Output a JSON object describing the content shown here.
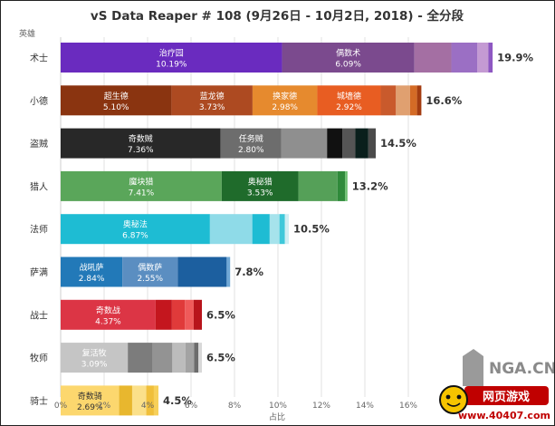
{
  "chart_data": {
    "type": "bar",
    "orientation": "horizontal",
    "stacked": true,
    "title": "vS Data Reaper # 108 (9月26日 - 10月2日, 2018) - 全分段",
    "ylabel": "英雄",
    "xlabel": "占比",
    "xlim": [
      0,
      18
    ],
    "xticks": [
      "0%",
      "2%",
      "4%",
      "6%",
      "8%",
      "10%",
      "12%",
      "14%",
      "16%"
    ],
    "grid": true,
    "categories": [
      "术士",
      "小德",
      "盗贼",
      "猎人",
      "法师",
      "萨满",
      "战士",
      "牧师",
      "骑士"
    ],
    "totals": [
      "19.9%",
      "16.6%",
      "14.5%",
      "13.2%",
      "10.5%",
      "7.8%",
      "6.5%",
      "6.5%",
      "4.5%"
    ],
    "bars": [
      {
        "class": "术士",
        "segments": [
          {
            "name": "治疗园",
            "pct": "10.19%",
            "value": 10.19,
            "color": "#6a2bbf"
          },
          {
            "name": "偶数术",
            "pct": "6.09%",
            "value": 6.09,
            "color": "#7b4a8e"
          },
          {
            "value": 1.7,
            "color": "#a46fa3"
          },
          {
            "value": 1.2,
            "color": "#9b6fc4"
          },
          {
            "value": 0.5,
            "color": "#c49ad3"
          },
          {
            "value": 0.2,
            "color": "#8e58c2"
          }
        ]
      },
      {
        "class": "小德",
        "segments": [
          {
            "name": "超生德",
            "pct": "5.10%",
            "value": 5.1,
            "color": "#8a3410"
          },
          {
            "name": "蓝龙德",
            "pct": "3.73%",
            "value": 3.73,
            "color": "#ad4a21"
          },
          {
            "name": "换家德",
            "pct": "2.98%",
            "value": 2.98,
            "color": "#e68a2e"
          },
          {
            "name": "城墙德",
            "pct": "2.92%",
            "value": 2.92,
            "color": "#e85d22"
          },
          {
            "value": 0.7,
            "color": "#c95a2c"
          },
          {
            "value": 0.65,
            "color": "#e0a070"
          },
          {
            "value": 0.32,
            "color": "#d46b26"
          },
          {
            "value": 0.2,
            "color": "#a33c10"
          }
        ]
      },
      {
        "class": "盗贼",
        "segments": [
          {
            "name": "奇数贼",
            "pct": "7.36%",
            "value": 7.36,
            "color": "#282828"
          },
          {
            "name": "任务贼",
            "pct": "2.80%",
            "value": 2.8,
            "color": "#6d6d6d"
          },
          {
            "value": 2.1,
            "color": "#8f8f8f"
          },
          {
            "value": 0.7,
            "color": "#111111"
          },
          {
            "value": 0.6,
            "color": "#555555"
          },
          {
            "value": 0.6,
            "color": "#0a1f1c"
          },
          {
            "value": 0.34,
            "color": "#4b4b4b"
          }
        ]
      },
      {
        "class": "猎人",
        "segments": [
          {
            "name": "魔块猎",
            "pct": "7.41%",
            "value": 7.41,
            "color": "#5aa65a"
          },
          {
            "name": "奥秘猎",
            "pct": "3.53%",
            "value": 3.53,
            "color": "#1f6b2b"
          },
          {
            "value": 1.8,
            "color": "#55a058"
          },
          {
            "value": 0.35,
            "color": "#2f8a3a"
          },
          {
            "value": 0.11,
            "color": "#6cc070"
          }
        ]
      },
      {
        "class": "法师",
        "segments": [
          {
            "name": "奥秘法",
            "pct": "6.87%",
            "value": 6.87,
            "color": "#1ebcd3"
          },
          {
            "value": 1.95,
            "color": "#8fdbe8"
          },
          {
            "value": 0.8,
            "color": "#1ebcd3"
          },
          {
            "value": 0.45,
            "color": "#a6e3ec"
          },
          {
            "value": 0.25,
            "color": "#3ec8da"
          },
          {
            "value": 0.18,
            "color": "#cfeff4"
          }
        ]
      },
      {
        "class": "萨满",
        "segments": [
          {
            "name": "战吼萨",
            "pct": "2.84%",
            "value": 2.84,
            "color": "#2279b8"
          },
          {
            "name": "偶数萨",
            "pct": "2.55%",
            "value": 2.55,
            "color": "#5b8ec1"
          },
          {
            "value": 2.25,
            "color": "#1c5f9f"
          },
          {
            "value": 0.16,
            "color": "#6fa8d6"
          }
        ]
      },
      {
        "class": "战士",
        "segments": [
          {
            "name": "奇数战",
            "pct": "4.37%",
            "value": 4.37,
            "color": "#dc3545"
          },
          {
            "value": 0.75,
            "color": "#c4161e"
          },
          {
            "value": 0.6,
            "color": "#e03a3a"
          },
          {
            "value": 0.4,
            "color": "#ef5a5a"
          },
          {
            "value": 0.38,
            "color": "#b8141b"
          }
        ]
      },
      {
        "class": "牧师",
        "segments": [
          {
            "name": "复活牧",
            "pct": "3.09%",
            "value": 3.09,
            "color": "#c5c5c5"
          },
          {
            "value": 1.15,
            "color": "#7c7c7c"
          },
          {
            "value": 0.9,
            "color": "#939393"
          },
          {
            "value": 0.6,
            "color": "#bcbcbc"
          },
          {
            "value": 0.4,
            "color": "#a3a3a3"
          },
          {
            "value": 0.2,
            "color": "#6c6c6c"
          },
          {
            "value": 0.16,
            "color": "#d8d8d8"
          }
        ]
      },
      {
        "class": "骑士",
        "segments": [
          {
            "name": "奇数骑",
            "pct": "2.69%",
            "value": 2.69,
            "color": "#fcd76e"
          },
          {
            "value": 0.6,
            "color": "#e8b72e"
          },
          {
            "value": 0.65,
            "color": "#fbe08a"
          },
          {
            "value": 0.35,
            "color": "#f0bf3a"
          },
          {
            "value": 0.21,
            "color": "#f7d05a"
          }
        ]
      }
    ]
  },
  "watermark": {
    "logo_text": "NGA.CN",
    "badge_text": "网页游戏",
    "url_text": "www.40407.com"
  }
}
